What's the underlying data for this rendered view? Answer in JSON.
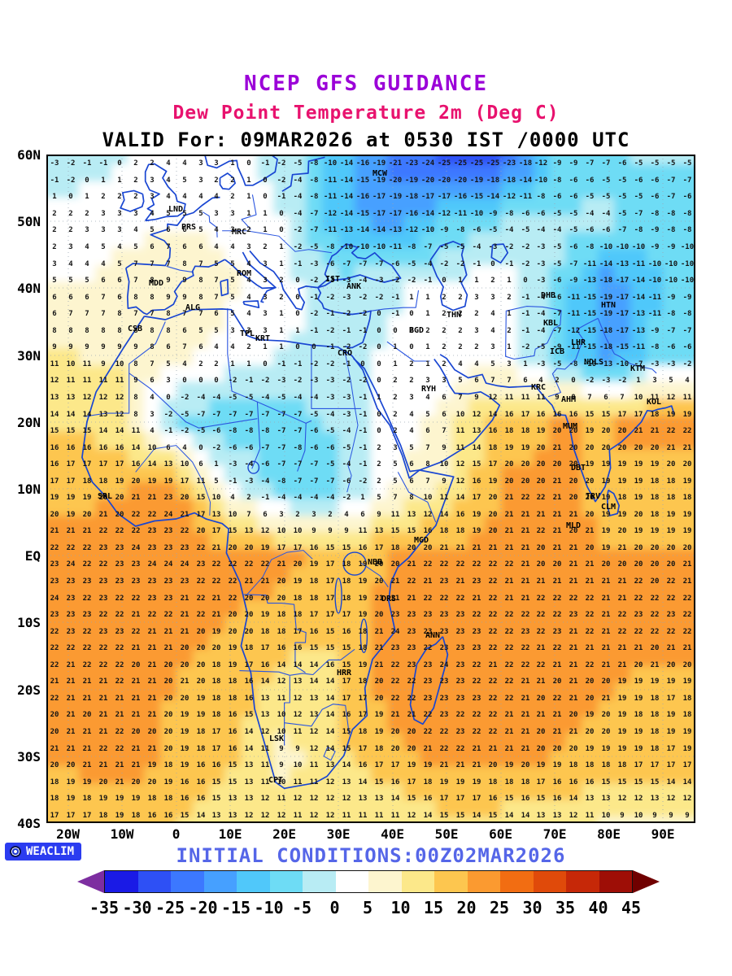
{
  "titles": {
    "line1": "NCEP GFS GUIDANCE",
    "line2": "Dew Point Temperature 2m (Deg C)",
    "line3": "VALID For: 09MAR2026 at 0530 IST /0000 UTC"
  },
  "footer": {
    "logo_text": "WEACLIM",
    "initial_conditions": "INITIAL CONDITIONS:00Z02MAR2026"
  },
  "colors": {
    "title1": "#9b00d8",
    "title2": "#e8126e",
    "valid_line": "#000000",
    "initial_conditions": "#5566e8",
    "coastline": "#1946d2",
    "logo_bg": "#2b3cf0",
    "value_text": "#151515"
  },
  "axes": {
    "lat_labels": [
      "60N",
      "50N",
      "40N",
      "30N",
      "20N",
      "10N",
      "EQ",
      "10S",
      "20S",
      "30S",
      "40S"
    ],
    "lat_values": [
      60,
      50,
      40,
      30,
      20,
      10,
      0,
      -10,
      -20,
      -30,
      -40
    ],
    "lon_labels": [
      "20W",
      "10W",
      "0",
      "10E",
      "20E",
      "30E",
      "40E",
      "50E",
      "60E",
      "70E",
      "80E",
      "90E"
    ],
    "lon_values": [
      -20,
      -10,
      0,
      10,
      20,
      30,
      40,
      50,
      60,
      70,
      80,
      90
    ]
  },
  "colorbar": {
    "tick_labels": [
      "-35",
      "-30",
      "-25",
      "-20",
      "-15",
      "-10",
      "-5",
      "0",
      "5",
      "10",
      "15",
      "20",
      "25",
      "30",
      "35",
      "40",
      "45"
    ],
    "tick_values": [
      -35,
      -30,
      -25,
      -20,
      -15,
      -10,
      -5,
      0,
      5,
      10,
      15,
      20,
      25,
      30,
      35,
      40,
      45
    ],
    "segment_colors": [
      "#1a1ae6",
      "#2e50f5",
      "#3c78ff",
      "#46a0ff",
      "#50c8fa",
      "#6edcf5",
      "#b8ecf4",
      "#ffffff",
      "#fdf5cf",
      "#fce88a",
      "#fdc64f",
      "#fb9a30",
      "#f26d12",
      "#e04a0a",
      "#c62808",
      "#9e0e06"
    ],
    "arrow_left_color": "#7d2ea0",
    "arrow_right_color": "#700000"
  },
  "chart_data": {
    "type": "heatmap",
    "title": "NCEP GFS GUIDANCE - Dew Point Temperature 2m (Deg C)",
    "valid": "09MAR2026 at 0530 IST /0000 UTC",
    "init": "00Z02MAR2026",
    "units": "Deg C",
    "lon_range": [
      -24,
      96
    ],
    "lat_range": [
      -40,
      60
    ],
    "value_grid_step_deg": 3,
    "grid_lons": [
      -20,
      -10,
      0,
      10,
      20,
      30,
      40,
      50,
      60,
      70,
      80,
      90
    ],
    "grid_lats": [
      60,
      50,
      40,
      30,
      20,
      10,
      0,
      -10,
      -20,
      -30,
      -40
    ],
    "values": [
      [
        -3,
        0,
        4,
        1,
        -2,
        -12,
        -22,
        -27,
        -27,
        -10,
        -6,
        -4
      ],
      [
        2,
        3,
        5,
        3,
        0,
        -14,
        -16,
        -10,
        -5,
        -4,
        -4,
        -9
      ],
      [
        5,
        7,
        10,
        6,
        2,
        -3,
        -1,
        2,
        3,
        -5,
        -20,
        -10
      ],
      [
        10,
        9,
        6,
        3,
        0,
        -2,
        1,
        2,
        3,
        -8,
        -18,
        -6
      ],
      [
        14,
        13,
        -6,
        -9,
        -8,
        -4,
        2,
        8,
        17,
        20,
        20,
        22
      ],
      [
        18,
        20,
        23,
        2,
        -8,
        -7,
        5,
        10,
        21,
        21,
        19,
        18
      ],
      [
        23,
        23,
        24,
        23,
        21,
        18,
        20,
        22,
        21,
        21,
        20,
        20
      ],
      [
        23,
        22,
        21,
        20,
        18,
        15,
        23,
        23,
        22,
        22,
        22,
        23
      ],
      [
        21,
        21,
        20,
        18,
        12,
        15,
        22,
        23,
        22,
        21,
        20,
        18
      ],
      [
        21,
        22,
        19,
        16,
        8,
        14,
        19,
        22,
        21,
        20,
        19,
        18
      ],
      [
        16,
        18,
        15,
        12,
        13,
        11,
        10,
        15,
        13,
        12,
        9,
        8
      ]
    ],
    "colorbar_interval": 5
  },
  "stations": [
    {
      "code": "MCW",
      "lon": 37.6,
      "lat": 56.8
    },
    {
      "code": "LND",
      "lon": -0.1,
      "lat": 51.5
    },
    {
      "code": "PRS",
      "lon": 2.3,
      "lat": 48.8
    },
    {
      "code": "MRC",
      "lon": 11.6,
      "lat": 48.1
    },
    {
      "code": "ROM",
      "lon": 12.5,
      "lat": 41.9
    },
    {
      "code": "IST",
      "lon": 28.9,
      "lat": 41.0
    },
    {
      "code": "ANK",
      "lon": 32.9,
      "lat": 39.9
    },
    {
      "code": "MDD",
      "lon": -3.7,
      "lat": 40.4
    },
    {
      "code": "ALG",
      "lon": 3.1,
      "lat": 36.8
    },
    {
      "code": "CSB",
      "lon": -7.6,
      "lat": 33.6
    },
    {
      "code": "TPL",
      "lon": 13.2,
      "lat": 32.9
    },
    {
      "code": "KRT",
      "lon": 16.0,
      "lat": 32.2
    },
    {
      "code": "CRO",
      "lon": 31.2,
      "lat": 30.0
    },
    {
      "code": "THN",
      "lon": 51.4,
      "lat": 35.7
    },
    {
      "code": "BGD",
      "lon": 44.4,
      "lat": 33.3
    },
    {
      "code": "RYH",
      "lon": 46.7,
      "lat": 24.6
    },
    {
      "code": "KRC",
      "lon": 67.0,
      "lat": 24.9
    },
    {
      "code": "AHM",
      "lon": 72.6,
      "lat": 23.0
    },
    {
      "code": "MUM",
      "lon": 72.9,
      "lat": 19.0
    },
    {
      "code": "KBL",
      "lon": 69.2,
      "lat": 34.5
    },
    {
      "code": "DHB",
      "lon": 68.8,
      "lat": 38.6
    },
    {
      "code": "HTN",
      "lon": 79.9,
      "lat": 37.1
    },
    {
      "code": "NDLS",
      "lon": 77.2,
      "lat": 28.6
    },
    {
      "code": "KTM",
      "lon": 85.3,
      "lat": 27.7
    },
    {
      "code": "KOL",
      "lon": 88.4,
      "lat": 22.6
    },
    {
      "code": "ICB",
      "lon": 70.4,
      "lat": 30.2
    },
    {
      "code": "LHR",
      "lon": 74.3,
      "lat": 31.5
    },
    {
      "code": "DBT",
      "lon": 74.3,
      "lat": 12.8
    },
    {
      "code": "TRV",
      "lon": 77.0,
      "lat": 8.5
    },
    {
      "code": "CLM",
      "lon": 79.9,
      "lat": 6.9
    },
    {
      "code": "MLD",
      "lon": 73.5,
      "lat": 4.2
    },
    {
      "code": "SRL",
      "lon": -13.2,
      "lat": 8.5
    },
    {
      "code": "MGD",
      "lon": 45.3,
      "lat": 2.0
    },
    {
      "code": "NBB",
      "lon": 36.8,
      "lat": -1.3
    },
    {
      "code": "DRS",
      "lon": 39.3,
      "lat": -6.8
    },
    {
      "code": "ANN",
      "lon": 47.5,
      "lat": -12.3
    },
    {
      "code": "HRR",
      "lon": 31.0,
      "lat": -17.8
    },
    {
      "code": "LSK",
      "lon": 18.5,
      "lat": -27.7
    },
    {
      "code": "CPT",
      "lon": 18.4,
      "lat": -33.9
    }
  ]
}
